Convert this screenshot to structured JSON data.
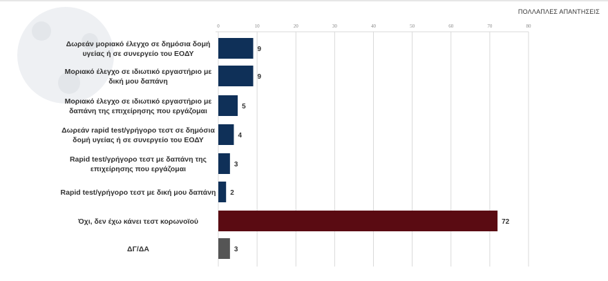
{
  "note": "ΠΟΛΛΑΠΛΕΣ ΑΠΑΝΤΗΣΕΙΣ",
  "colors": {
    "primary": "#0f3058",
    "highlight": "#5a0b12",
    "other": "#555555",
    "grid": "#d9d9d9"
  },
  "chart_data": {
    "type": "bar",
    "orientation": "horizontal",
    "categories": [
      [
        "Δωρεάν μοριακό έλεγχο σε δημόσια δομή",
        "υγείας ή σε συνεργείο του ΕΟΔΥ"
      ],
      [
        "Μοριακό έλεγχο σε ιδιωτικό εργαστήριο με",
        "δική μου δαπάνη"
      ],
      [
        "Μοριακό έλεγχο σε ιδιωτικό εργαστήριο με",
        "δαπάνη της επιχείρησης που εργάζομαι"
      ],
      [
        "Δωρεάν rapid test/γρήγορο τεστ σε δημόσια",
        "δομή υγείας ή σε συνεργείο του ΕΟΔΥ"
      ],
      [
        "Rapid test/γρήγορο τεστ με δαπάνη της",
        "επιχείρησης που εργάζομαι"
      ],
      [
        "Rapid test/γρήγορο τεστ με δική μου δαπάνη"
      ],
      [
        "Όχι, δεν έχω κάνει τεστ κορωνοϊού"
      ],
      [
        "ΔΓ/ΔΑ"
      ]
    ],
    "values": [
      9,
      9,
      5,
      4,
      3,
      2,
      72,
      3
    ],
    "bar_colors": [
      "#0f3058",
      "#0f3058",
      "#0f3058",
      "#0f3058",
      "#0f3058",
      "#0f3058",
      "#5a0b12",
      "#555555"
    ],
    "xlim": [
      0,
      80
    ],
    "xticks": [
      0,
      10,
      20,
      30,
      40,
      50,
      60,
      70,
      80
    ],
    "x_axis_position": "top",
    "grid": true,
    "data_labels": true
  }
}
